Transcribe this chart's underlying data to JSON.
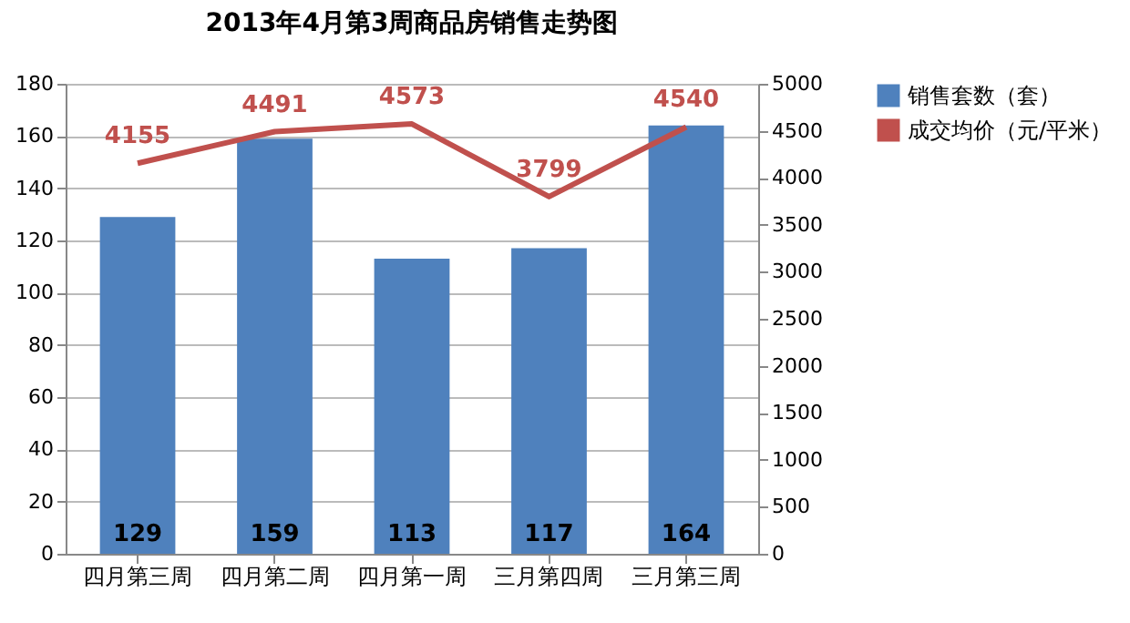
{
  "chart_data": {
    "type": "bar",
    "title": "2013年4月第3周商品房销售走势图",
    "categories": [
      "四月第三周",
      "四月第二周",
      "四月第一周",
      "三月第四周",
      "三月第三周"
    ],
    "series": [
      {
        "name": "销售套数（套）",
        "color": "#4f81bd",
        "values": [
          129,
          159,
          113,
          117,
          164
        ]
      },
      {
        "name": "成交均价（元/平米）",
        "type": "line",
        "axis": "y2",
        "color": "#c0504d",
        "values": [
          4155,
          4491,
          4573,
          3799,
          4540
        ]
      }
    ],
    "ylim": [
      0,
      180
    ],
    "yticks": [
      0,
      20,
      40,
      60,
      80,
      100,
      120,
      140,
      160,
      180
    ],
    "y2lim": [
      0,
      5000
    ],
    "y2ticks": [
      0,
      500,
      1000,
      1500,
      2000,
      2500,
      3000,
      3500,
      4000,
      4500,
      5000
    ],
    "grid": "y",
    "legend": "right",
    "data_labels": true
  }
}
